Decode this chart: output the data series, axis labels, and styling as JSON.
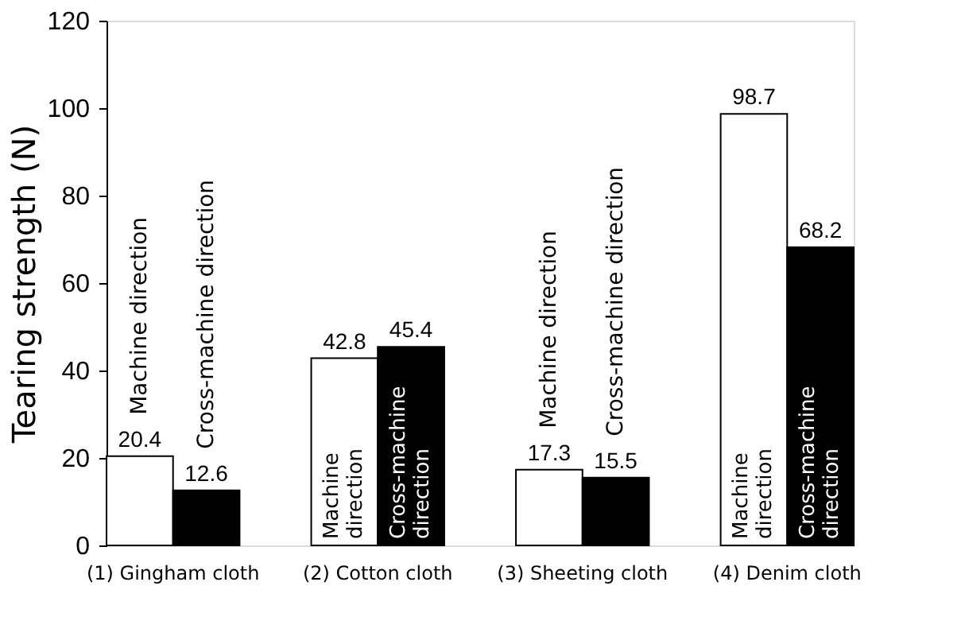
{
  "chart_data": {
    "type": "bar",
    "ylabel": "Tearing strength (N)",
    "categories": [
      "(1) Gingham cloth",
      "(2) Cotton cloth",
      "(3) Sheeting cloth",
      "(4) Denim cloth"
    ],
    "series": [
      {
        "name": "Machine direction",
        "color": "#ffffff",
        "values": [
          20.4,
          42.8,
          17.3,
          98.7
        ]
      },
      {
        "name": "Cross-machine direction",
        "color": "#000000",
        "values": [
          12.6,
          45.4,
          15.5,
          68.2
        ]
      }
    ],
    "ylim": [
      0,
      120
    ],
    "yticks": [
      0,
      20,
      40,
      60,
      80,
      100,
      120
    ],
    "grid": false,
    "legend": false,
    "data_labels": true
  }
}
